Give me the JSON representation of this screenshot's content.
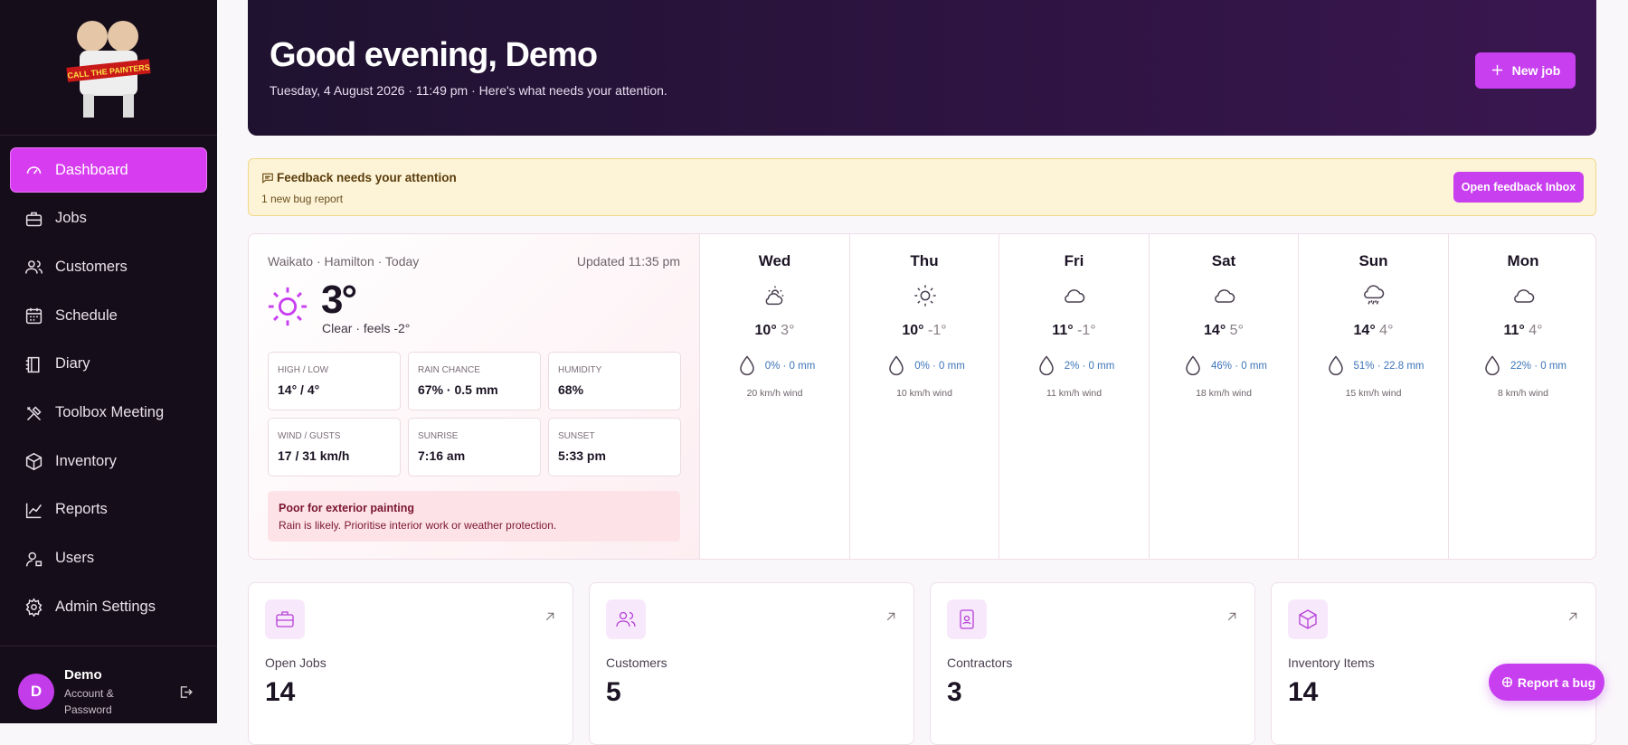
{
  "brand": {
    "logo_text": "CALL THE PAINTERS"
  },
  "nav": {
    "items": [
      "Dashboard",
      "Jobs",
      "Customers",
      "Schedule",
      "Diary",
      "Toolbox Meeting",
      "Inventory",
      "Reports",
      "Users",
      "Admin Settings"
    ],
    "active": 0
  },
  "user": {
    "initial": "D",
    "name": "Demo",
    "link": "Account & Password"
  },
  "header": {
    "title": "Good evening, Demo",
    "subtitle": "Tuesday, 4 August 2026 · 11:49 pm · Here's what needs your attention.",
    "button": "New job"
  },
  "alert": {
    "title": "Feedback needs your attention",
    "text": "1 new bug report",
    "button": "Open feedback Inbox"
  },
  "weather": {
    "location": "Waikato · Hamilton · Today",
    "updated": "Updated 11:35 pm",
    "temp": "3°",
    "condition": "Clear · feels -2°",
    "stats": [
      {
        "label": "HIGH / LOW",
        "value": "14° / 4°"
      },
      {
        "label": "RAIN CHANCE",
        "value": "67% · 0.5 mm"
      },
      {
        "label": "HUMIDITY",
        "value": "68%"
      },
      {
        "label": "WIND / GUSTS",
        "value": "17 / 31 km/h"
      },
      {
        "label": "SUNRISE",
        "value": "7:16 am"
      },
      {
        "label": "SUNSET",
        "value": "5:33 pm"
      }
    ],
    "warning": {
      "title": "Poor for exterior painting",
      "text": "Rain is likely. Prioritise interior work or weather protection."
    },
    "forecast": [
      {
        "day": "Wed",
        "icon": "partly-cloudy",
        "high": "10°",
        "low": "3°",
        "rain": "0% · 0 mm",
        "wind": "20 km/h wind"
      },
      {
        "day": "Thu",
        "icon": "sun",
        "high": "10°",
        "low": "-1°",
        "rain": "0% · 0 mm",
        "wind": "10 km/h wind"
      },
      {
        "day": "Fri",
        "icon": "cloud",
        "high": "11°",
        "low": "-1°",
        "rain": "2% · 0 mm",
        "wind": "11 km/h wind"
      },
      {
        "day": "Sat",
        "icon": "cloud",
        "high": "14°",
        "low": "5°",
        "rain": "46% · 0 mm",
        "wind": "18 km/h wind"
      },
      {
        "day": "Sun",
        "icon": "rain",
        "high": "14°",
        "low": "4°",
        "rain": "51% · 22.8 mm",
        "wind": "15 km/h wind"
      },
      {
        "day": "Mon",
        "icon": "cloud",
        "high": "11°",
        "low": "4°",
        "rain": "22% · 0 mm",
        "wind": "8 km/h wind"
      }
    ]
  },
  "cards": [
    {
      "label": "Open Jobs",
      "value": "14"
    },
    {
      "label": "Customers",
      "value": "5"
    },
    {
      "label": "Contractors",
      "value": "3"
    },
    {
      "label": "Inventory Items",
      "value": "14"
    }
  ],
  "report_button": "Report a bug"
}
